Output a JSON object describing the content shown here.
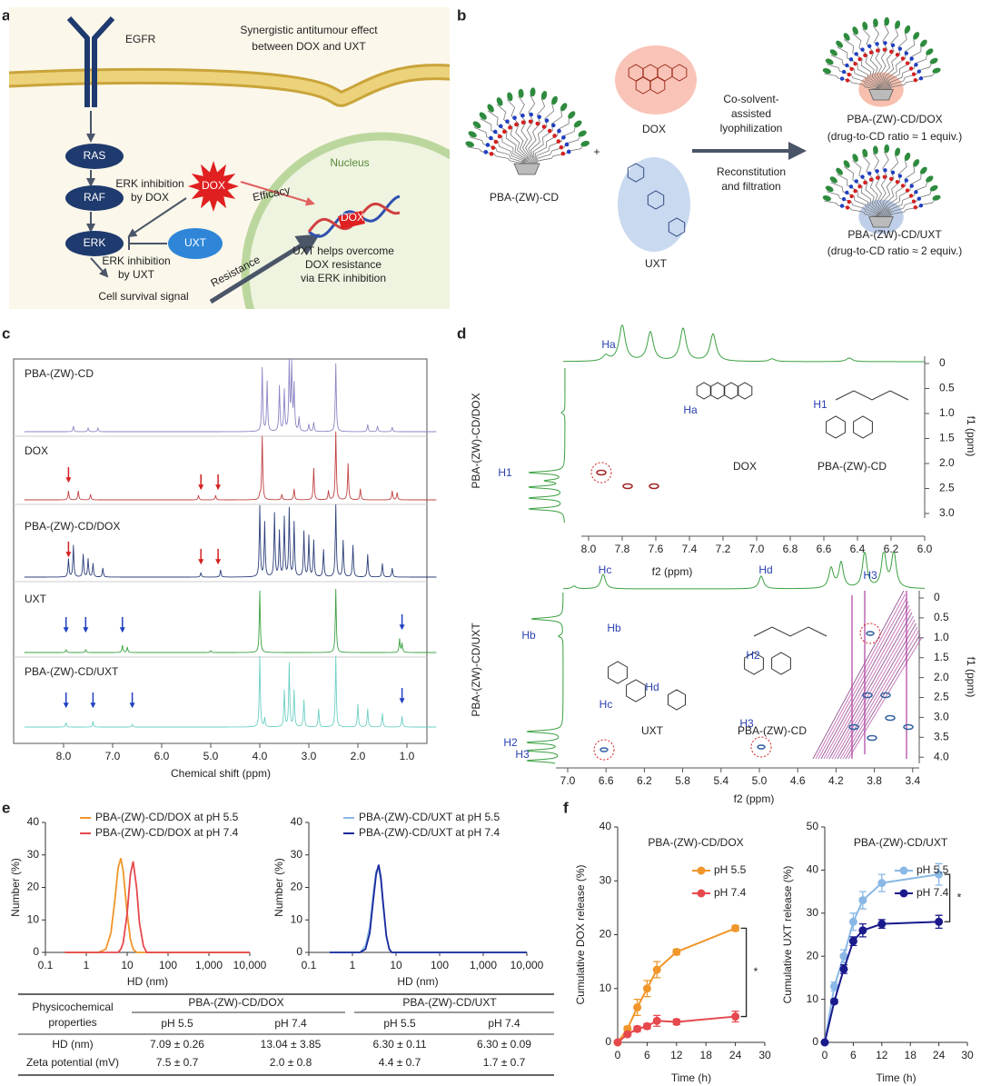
{
  "figure": {
    "a": {
      "label": "a",
      "title": [
        "Synergistic antitumour effect",
        "between DOX and UXT"
      ],
      "egfr": "EGFR",
      "ras": "RAS",
      "raf": "RAF",
      "erk": "ERK",
      "dox": "DOX",
      "uxt": "UXT",
      "nucleus": "Nucleus",
      "erk_by_dox": [
        "ERK inhibition",
        "by DOX"
      ],
      "erk_by_uxt": [
        "ERK inhibition",
        "by UXT"
      ],
      "efficacy": "Efficacy",
      "resistance": "Resistance",
      "survival": "Cell survival signal",
      "overcome": [
        "UXT helps overcome",
        "DOX resistance",
        "via ERK inhibition"
      ],
      "dna_dox": "DOX"
    },
    "b": {
      "label": "b",
      "carrier": "PBA-(ZW)-CD",
      "plus": "+",
      "dox": "DOX",
      "uxt": "UXT",
      "step1": [
        "Co-solvent-",
        "assisted",
        "lyophilization"
      ],
      "step2": [
        "Reconstitution",
        "and filtration"
      ],
      "product1": "PBA-(ZW)-CD/DOX",
      "ratio1": "(drug-to-CD ratio ≈ 1 equiv.)",
      "product2": "PBA-(ZW)-CD/UXT",
      "ratio2": "(drug-to-CD ratio ≈ 2 equiv.)"
    },
    "c": {
      "label": "c",
      "traces": [
        "PBA-(ZW)-CD",
        "DOX",
        "PBA-(ZW)-CD/DOX",
        "UXT",
        "PBA-(ZW)-CD/UXT"
      ],
      "xticks": [
        "8.0",
        "7.0",
        "6.0",
        "5.0",
        "4.0",
        "3.0",
        "2.0",
        "1.0"
      ],
      "xlabel": "Chemical shift (ppm)"
    },
    "d": {
      "label": "d",
      "top": {
        "sample": "PBA-(ZW)-CD/DOX",
        "xticks": [
          "8.0",
          "7.8",
          "7.6",
          "7.4",
          "7.2",
          "7.0",
          "6.8",
          "6.6",
          "6.4",
          "6.2",
          "6.0"
        ],
        "yticks": [
          "0",
          "0.5",
          "1.0",
          "1.5",
          "2.0",
          "2.5",
          "3.0"
        ],
        "xlabel": "f2 (ppm)",
        "ylabel": "f1 (ppm)",
        "labels": [
          "Ha",
          "H1",
          "Ha",
          "H1",
          "DOX",
          "PBA-(ZW)-CD"
        ]
      },
      "bottom": {
        "sample": "PBA-(ZW)-CD/UXT",
        "xticks": [
          "7.0",
          "6.6",
          "6.2",
          "5.8",
          "5.4",
          "5.0",
          "4.6",
          "4.2",
          "3.8",
          "3.4"
        ],
        "yticks": [
          "0",
          "0.5",
          "1.0",
          "1.5",
          "2.0",
          "2.5",
          "3.0",
          "3.5",
          "4.0"
        ],
        "xlabel": "f2 (ppm)",
        "ylabel": "f1 (ppm)",
        "labels": [
          "Hc",
          "Hd",
          "H3",
          "Hb",
          "Hb",
          "Hc",
          "Hd",
          "H2",
          "H3",
          "UXT",
          "PBA-(ZW)-CD",
          "H2",
          "H3"
        ]
      }
    },
    "e": {
      "label": "e"
    },
    "f": {
      "label": "f"
    },
    "table": {
      "header": [
        "Physicochemical",
        "properties"
      ],
      "groups": [
        "PBA-(ZW)-CD/DOX",
        "PBA-(ZW)-CD/UXT"
      ],
      "subheaders": [
        "pH 5.5",
        "pH 7.4",
        "pH 5.5",
        "pH 7.4"
      ],
      "rows": [
        [
          "HD (nm)",
          "7.09 ± 0.26",
          "13.04 ± 3.85",
          "6.30 ± 0.11",
          "6.30 ± 0.09"
        ],
        [
          "Zeta potential (mV)",
          "7.5 ± 0.7",
          "2.0 ± 0.8",
          "4.4 ± 0.7",
          "1.7 ± 0.7"
        ]
      ]
    }
  },
  "chart_data": [
    {
      "type": "line",
      "log_x": true,
      "markers": false,
      "legend": "upper left",
      "xlabel": "HD (nm)",
      "ylabel": "Number (%)",
      "xlim": [
        0.1,
        10000
      ],
      "xticks": [
        0.1,
        1,
        10,
        100,
        {
          "value": 1000,
          "label": "1,000"
        },
        {
          "value": 10000,
          "label": "10,000"
        }
      ],
      "ylim": [
        0,
        40
      ],
      "yticks": [
        0,
        10,
        20,
        30,
        40
      ],
      "x": [
        0.3,
        2,
        3,
        4,
        5,
        6,
        7,
        8,
        10,
        12,
        14,
        17,
        20,
        25,
        30,
        40,
        10000
      ],
      "series": [
        {
          "name": "PBA-(ZW)-CD/DOX at pH 5.5",
          "color": "#f0962a",
          "values": [
            0,
            0,
            1,
            6,
            16,
            26,
            29,
            25,
            12,
            4,
            1,
            0,
            0,
            0,
            0,
            0,
            0
          ]
        },
        {
          "name": "PBA-(ZW)-CD/DOX at pH 7.4",
          "color": "#e5484d",
          "values": [
            0,
            0,
            0,
            0,
            0,
            0,
            1,
            3,
            12,
            24,
            28,
            20,
            9,
            2,
            0,
            0,
            0
          ]
        }
      ]
    },
    {
      "type": "line",
      "log_x": true,
      "markers": false,
      "legend": "upper left",
      "xlabel": "HD (nm)",
      "ylabel": "Number (%)",
      "xlim": [
        0.1,
        10000
      ],
      "xticks": [
        0.1,
        1,
        10,
        100,
        {
          "value": 1000,
          "label": "1,000"
        },
        {
          "value": 10000,
          "label": "10,000"
        }
      ],
      "ylim": [
        0,
        40
      ],
      "yticks": [
        0,
        10,
        20,
        30,
        40
      ],
      "x": [
        0.3,
        1.5,
        2,
        2.5,
        3,
        3.5,
        4,
        4.5,
        5,
        6,
        7,
        8,
        10000
      ],
      "series": [
        {
          "name": "PBA-(ZW)-CD/UXT at pH 5.5",
          "color": "#8ab8e6",
          "values": [
            0,
            0,
            2,
            8,
            18,
            25,
            26,
            22,
            15,
            5,
            1,
            0,
            0
          ]
        },
        {
          "name": "PBA-(ZW)-CD/UXT at pH 7.4",
          "color": "#1a2a9c",
          "values": [
            0,
            0,
            1,
            6,
            16,
            24,
            27,
            23,
            16,
            5,
            1,
            0,
            0
          ]
        }
      ]
    },
    {
      "type": "line",
      "log_x": false,
      "markers": true,
      "legend": "upper right",
      "title": "PBA-(ZW)-CD/DOX",
      "xlabel": "Time (h)",
      "ylabel": "Cumulative DOX release (%)",
      "annotation": "*",
      "xlim": [
        0,
        30
      ],
      "xticks": [
        0,
        6,
        12,
        18,
        24,
        30
      ],
      "ylim": [
        0,
        40
      ],
      "yticks": [
        0,
        10,
        20,
        30,
        40
      ],
      "x": [
        0,
        2,
        4,
        6,
        8,
        12,
        24
      ],
      "series": [
        {
          "name": "pH 5.5",
          "color": "#f0962a",
          "values": [
            0,
            2.5,
            6.5,
            10,
            13.5,
            16.8,
            21.2
          ],
          "errors": [
            0,
            0.5,
            1.5,
            1.5,
            1.5,
            0.5,
            0.5
          ]
        },
        {
          "name": "pH 7.4",
          "color": "#e5484d",
          "values": [
            0,
            1.5,
            2.5,
            3,
            4,
            3.8,
            4.8
          ],
          "errors": [
            0,
            0.3,
            0.5,
            0.5,
            1,
            0.5,
            1
          ]
        }
      ]
    },
    {
      "type": "line",
      "log_x": false,
      "markers": true,
      "legend": "upper right",
      "title": "PBA-(ZW)-CD/UXT",
      "xlabel": "Time (h)",
      "ylabel": "Cumulative UXT release (%)",
      "annotation": "*",
      "xlim": [
        0,
        30
      ],
      "xticks": [
        0,
        6,
        12,
        18,
        24,
        30
      ],
      "ylim": [
        0,
        50
      ],
      "yticks": [
        0,
        10,
        20,
        30,
        40,
        50
      ],
      "x": [
        0,
        2,
        4,
        6,
        8,
        12,
        24
      ],
      "series": [
        {
          "name": "pH 5.5",
          "color": "#8ab8e6",
          "values": [
            0,
            13,
            20,
            28,
            33,
            37,
            39
          ],
          "errors": [
            0,
            1,
            1.5,
            2,
            2,
            2,
            2.5
          ]
        },
        {
          "name": "pH 7.4",
          "color": "#1a1a8c",
          "values": [
            0,
            9.5,
            17,
            23.5,
            26,
            27.5,
            28
          ],
          "errors": [
            0,
            0.5,
            1,
            1,
            1.5,
            1,
            1.5
          ]
        }
      ]
    }
  ]
}
